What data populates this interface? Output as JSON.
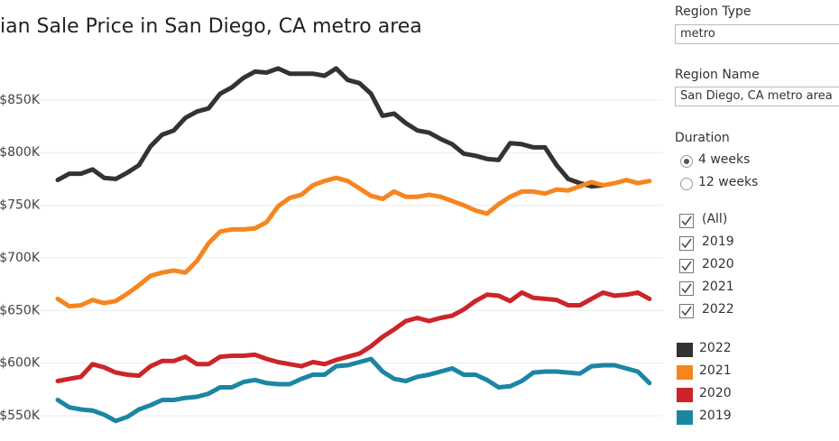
{
  "chart_data": {
    "type": "line",
    "title": "ian Sale Price in San Diego, CA metro area",
    "categories": [
      null,
      null,
      null,
      null,
      null,
      null,
      null,
      null,
      null,
      null,
      null,
      null,
      null,
      null,
      null,
      null,
      null,
      null,
      null,
      null,
      null,
      null,
      null,
      null,
      null,
      null,
      null,
      null,
      null,
      null,
      null,
      null,
      null,
      null,
      null,
      null,
      null,
      null,
      null,
      null,
      null,
      null,
      null,
      null,
      null,
      null,
      null,
      null,
      null,
      null,
      null,
      null
    ],
    "series": [
      {
        "name": "2022",
        "color": "#333333",
        "values": [
          774000,
          780000,
          780000,
          784000,
          776000,
          775000,
          781000,
          788000,
          806000,
          817000,
          821000,
          833000,
          839000,
          842000,
          856000,
          862000,
          871000,
          877000,
          876000,
          880000,
          875000,
          875000,
          875000,
          873000,
          880000,
          869000,
          866000,
          856000,
          835000,
          837000,
          828000,
          821000,
          819000,
          813000,
          808000,
          799000,
          797000,
          794000,
          793000,
          809000,
          808000,
          805000,
          805000,
          788000,
          775000,
          771000,
          768000,
          769000,
          null,
          null,
          null,
          null
        ]
      },
      {
        "name": "2021",
        "color": "#f7851f",
        "values": [
          661000,
          654000,
          655000,
          660000,
          657000,
          659000,
          666000,
          674000,
          683000,
          686000,
          688000,
          686000,
          697000,
          714000,
          725000,
          727000,
          727000,
          728000,
          734000,
          749000,
          757000,
          760000,
          769000,
          773000,
          776000,
          773000,
          766000,
          759000,
          756000,
          763000,
          758000,
          758000,
          760000,
          758000,
          754000,
          750000,
          745000,
          742000,
          751000,
          758000,
          763000,
          763000,
          761000,
          765000,
          764000,
          768000,
          772000,
          769000,
          771000,
          774000,
          771000,
          773000
        ]
      },
      {
        "name": "2020",
        "color": "#cc2529",
        "values": [
          583000,
          585000,
          587000,
          599000,
          596000,
          591000,
          589000,
          588000,
          597000,
          602000,
          602000,
          606000,
          599000,
          599000,
          606000,
          607000,
          607000,
          608000,
          604000,
          601000,
          599000,
          597000,
          601000,
          599000,
          603000,
          606000,
          609000,
          616000,
          625000,
          632000,
          640000,
          643000,
          640000,
          643000,
          645000,
          651000,
          659000,
          665000,
          664000,
          659000,
          667000,
          662000,
          661000,
          660000,
          655000,
          655000,
          661000,
          667000,
          664000,
          665000,
          667000,
          661000
        ]
      },
      {
        "name": "2019",
        "color": "#1b86a3",
        "values": [
          565000,
          558000,
          556000,
          555000,
          551000,
          545000,
          549000,
          556000,
          560000,
          565000,
          565000,
          567000,
          568000,
          571000,
          577000,
          577000,
          582000,
          584000,
          581000,
          580000,
          580000,
          585000,
          589000,
          589000,
          597000,
          598000,
          601000,
          604000,
          592000,
          585000,
          583000,
          587000,
          589000,
          592000,
          595000,
          589000,
          589000,
          584000,
          577000,
          578000,
          583000,
          591000,
          592000,
          592000,
          591000,
          590000,
          597000,
          598000,
          598000,
          595000,
          592000,
          581000
        ]
      }
    ],
    "ylim": [
      538000,
      945000
    ],
    "yticks": [
      {
        "value": 550000,
        "label": "$550K"
      },
      {
        "value": 600000,
        "label": "$600K"
      },
      {
        "value": 650000,
        "label": "$650K"
      },
      {
        "value": 700000,
        "label": "$700K"
      },
      {
        "value": 750000,
        "label": "$750K"
      },
      {
        "value": 800000,
        "label": "$800K"
      },
      {
        "value": 850000,
        "label": "$850K"
      }
    ],
    "grid": true
  },
  "controls": {
    "region_type": {
      "label": "Region Type",
      "value": "metro"
    },
    "region_name": {
      "label": "Region Name",
      "value": "San Diego, CA metro area"
    },
    "duration": {
      "label": "Duration",
      "options": [
        "4 weeks",
        "12 weeks"
      ],
      "selected": 0
    },
    "year_filter": [
      "(All)",
      "2019",
      "2020",
      "2021",
      "2022"
    ]
  }
}
